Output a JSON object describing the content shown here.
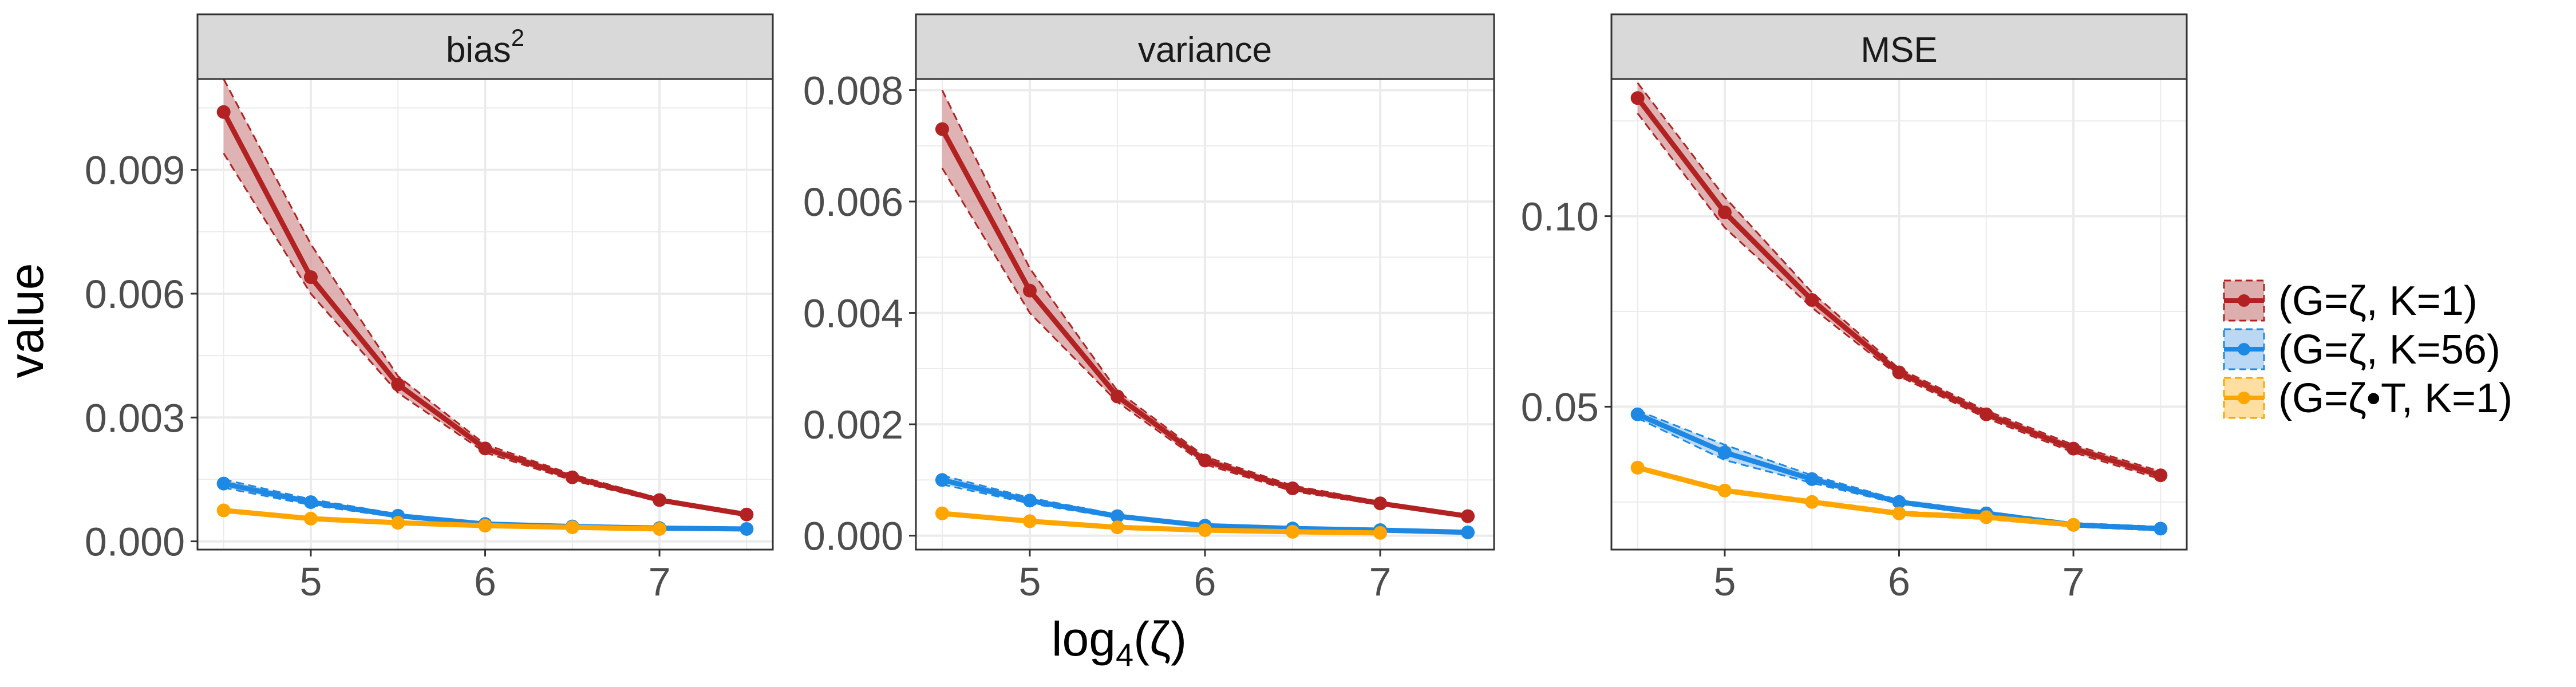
{
  "chart_data": [
    {
      "type": "line",
      "facet": "bias",
      "facet_sup": "2",
      "ylim": [
        -0.0002,
        0.0112
      ],
      "xlim": [
        4.35,
        7.65
      ],
      "yticks": [
        0.0,
        0.003,
        0.006,
        0.009
      ],
      "ytick_labels": [
        "0.000",
        "0.003",
        "0.006",
        "0.009"
      ],
      "xticks": [
        5,
        6,
        7
      ],
      "xtick_labels": [
        "5",
        "6",
        "7"
      ],
      "grid": true,
      "series": [
        {
          "name": "(G=ζ, K=1)",
          "x": [
            4.5,
            5.0,
            5.5,
            6.0,
            6.5,
            7.0,
            7.5
          ],
          "y": [
            0.0104,
            0.0064,
            0.0038,
            0.00225,
            0.00155,
            0.001,
            0.00065
          ],
          "lower": [
            0.0094,
            0.006,
            0.0036,
            0.00215,
            0.00148,
            0.00096,
            0.00062
          ],
          "upper": [
            0.0112,
            0.0072,
            0.004,
            0.00235,
            0.00162,
            0.00104,
            0.00068
          ]
        },
        {
          "name": "(G=ζ, K=56)",
          "x": [
            4.5,
            5.0,
            5.5,
            6.0,
            6.5,
            7.0,
            7.5
          ],
          "y": [
            0.0014,
            0.00095,
            0.00062,
            0.00042,
            0.00036,
            0.00032,
            0.0003
          ],
          "lower": [
            0.0013,
            0.00088,
            0.00058,
            0.0004,
            0.00034,
            0.0003,
            0.00028
          ],
          "upper": [
            0.0015,
            0.00102,
            0.00066,
            0.00044,
            0.00038,
            0.00034,
            0.00032
          ]
        },
        {
          "name": "(G=ζ•T, K=1)",
          "x": [
            4.5,
            5.0,
            5.5,
            6.0,
            6.5,
            7.0
          ],
          "y": [
            0.00075,
            0.00055,
            0.00045,
            0.00038,
            0.00034,
            0.0003
          ],
          "lower": [
            0.00072,
            0.00052,
            0.00043,
            0.00036,
            0.00032,
            0.00028
          ],
          "upper": [
            0.00078,
            0.00058,
            0.00047,
            0.0004,
            0.00036,
            0.00032
          ]
        }
      ]
    },
    {
      "type": "line",
      "facet": "variance",
      "facet_sup": "",
      "ylim": [
        -0.00025,
        0.0082
      ],
      "xlim": [
        4.35,
        7.65
      ],
      "yticks": [
        0.0,
        0.002,
        0.004,
        0.006,
        0.008
      ],
      "ytick_labels": [
        "0.000",
        "0.002",
        "0.004",
        "0.006",
        "0.008"
      ],
      "xticks": [
        5,
        6,
        7
      ],
      "xtick_labels": [
        "5",
        "6",
        "7"
      ],
      "grid": true,
      "series": [
        {
          "name": "(G=ζ, K=1)",
          "x": [
            4.5,
            5.0,
            5.5,
            6.0,
            6.5,
            7.0,
            7.5
          ],
          "y": [
            0.0073,
            0.0044,
            0.0025,
            0.00135,
            0.00085,
            0.00058,
            0.00035
          ],
          "lower": [
            0.0066,
            0.004,
            0.0024,
            0.00128,
            0.0008,
            0.00055,
            0.00033
          ],
          "upper": [
            0.008,
            0.0048,
            0.0026,
            0.00142,
            0.0009,
            0.00061,
            0.00037
          ]
        },
        {
          "name": "(G=ζ, K=56)",
          "x": [
            4.5,
            5.0,
            5.5,
            6.0,
            6.5,
            7.0,
            7.5
          ],
          "y": [
            0.001,
            0.00063,
            0.00035,
            0.00018,
            0.00013,
            0.0001,
            6e-05
          ],
          "lower": [
            0.00092,
            0.00058,
            0.00032,
            0.00016,
            0.00011,
            8e-05,
            4e-05
          ],
          "upper": [
            0.00108,
            0.00068,
            0.00038,
            0.0002,
            0.00015,
            0.00012,
            8e-05
          ]
        },
        {
          "name": "(G=ζ•T, K=1)",
          "x": [
            4.5,
            5.0,
            5.5,
            6.0,
            6.5,
            7.0
          ],
          "y": [
            0.0004,
            0.00026,
            0.00015,
            0.0001,
            7e-05,
            5e-05
          ],
          "lower": [
            0.00037,
            0.00024,
            0.00013,
            8e-05,
            5e-05,
            3e-05
          ],
          "upper": [
            0.00043,
            0.00028,
            0.00017,
            0.00012,
            9e-05,
            7e-05
          ]
        }
      ]
    },
    {
      "type": "line",
      "facet": "MSE",
      "facet_sup": "",
      "ylim": [
        0.0125,
        0.136
      ],
      "xlim": [
        4.35,
        7.65
      ],
      "yticks": [
        0.05,
        0.1
      ],
      "ytick_labels": [
        "0.05",
        "0.10"
      ],
      "xticks": [
        5,
        6,
        7
      ],
      "xtick_labels": [
        "5",
        "6",
        "7"
      ],
      "grid": true,
      "series": [
        {
          "name": "(G=ζ, K=1)",
          "x": [
            4.5,
            5.0,
            5.5,
            6.0,
            6.5,
            7.0,
            7.5
          ],
          "y": [
            0.131,
            0.101,
            0.078,
            0.059,
            0.048,
            0.039,
            0.032
          ],
          "lower": [
            0.127,
            0.097,
            0.076,
            0.058,
            0.047,
            0.038,
            0.031
          ],
          "upper": [
            0.135,
            0.105,
            0.08,
            0.06,
            0.049,
            0.04,
            0.033
          ]
        },
        {
          "name": "(G=ζ, K=56)",
          "x": [
            4.5,
            5.0,
            5.5,
            6.0,
            6.5,
            7.0,
            7.5
          ],
          "y": [
            0.048,
            0.038,
            0.031,
            0.025,
            0.022,
            0.019,
            0.018
          ],
          "lower": [
            0.047,
            0.036,
            0.03,
            0.0245,
            0.0215,
            0.0185,
            0.0175
          ],
          "upper": [
            0.049,
            0.04,
            0.032,
            0.0255,
            0.0225,
            0.0195,
            0.0185
          ]
        },
        {
          "name": "(G=ζ•T, K=1)",
          "x": [
            4.5,
            5.0,
            5.5,
            6.0,
            6.5,
            7.0
          ],
          "y": [
            0.034,
            0.028,
            0.025,
            0.022,
            0.021,
            0.019
          ],
          "lower": [
            0.0335,
            0.0275,
            0.0245,
            0.0215,
            0.0205,
            0.0185
          ],
          "upper": [
            0.0345,
            0.0285,
            0.0255,
            0.0225,
            0.0215,
            0.0195
          ]
        }
      ]
    }
  ],
  "axes": {
    "ylabel": "value",
    "xlabel_base": "log",
    "xlabel_sub": "4",
    "xlabel_arg": "(ζ)"
  },
  "legend": {
    "placement": "right",
    "items": [
      {
        "label": "(G=ζ, K=1)",
        "color": "#b22222",
        "fill": "#d49a9a"
      },
      {
        "label": "(G=ζ, K=56)",
        "color": "#1e88e5",
        "fill": "#a9cdf0"
      },
      {
        "label": "(G=ζ•T, K=1)",
        "color": "#ffa500",
        "fill": "#ffd68a"
      }
    ]
  },
  "colors": {
    "strip_bg": "#d9d9d9",
    "panel_border": "#333333",
    "grid": "#ebebeb",
    "tick_text": "#4d4d4d"
  }
}
